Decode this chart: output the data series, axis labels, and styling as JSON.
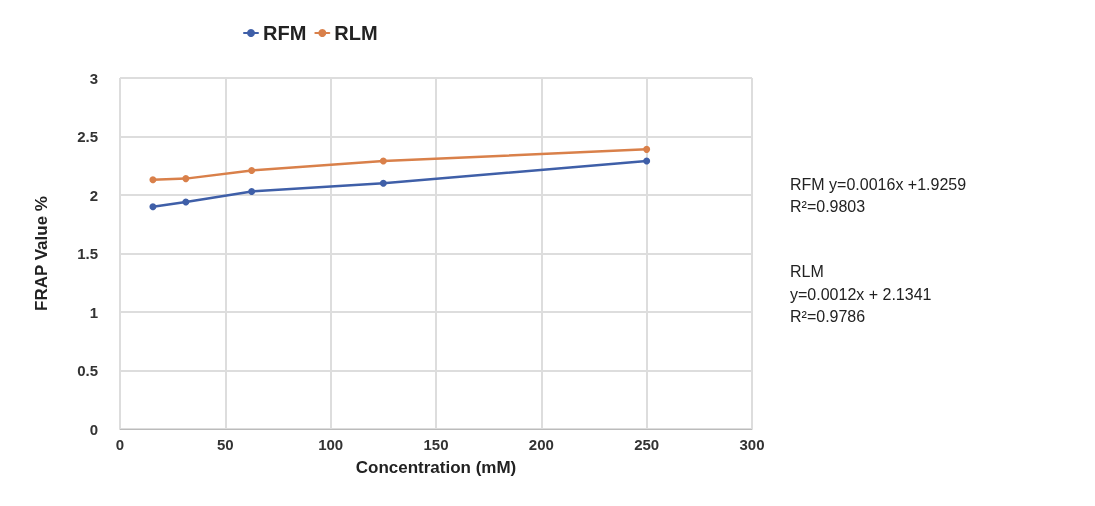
{
  "chart_data": {
    "type": "line",
    "xlabel": "Concentration (mM)",
    "ylabel": "FRAP Value %",
    "x": [
      15.625,
      31.25,
      62.5,
      125,
      250
    ],
    "series": [
      {
        "name": "RFM",
        "color": "#3f5fa8",
        "values": [
          1.9,
          1.94,
          2.03,
          2.1,
          2.29
        ]
      },
      {
        "name": "RLM",
        "color": "#d9804a",
        "values": [
          2.13,
          2.14,
          2.21,
          2.29,
          2.39
        ]
      }
    ],
    "xlim": [
      0,
      300
    ],
    "xticks": [
      0,
      50,
      100,
      150,
      200,
      250,
      300
    ],
    "ylim": [
      0,
      3
    ],
    "yticks": [
      0,
      0.5,
      1,
      1.5,
      2,
      2.5,
      3
    ],
    "grid": true,
    "legend": "top",
    "marker": "circle",
    "line_style": "solid",
    "annotations": [
      "RFM y=0.0016x +1.9259",
      "R²=0.9803",
      "RLM",
      "y=0.0012x + 2.1341",
      "R²=0.9786"
    ]
  }
}
